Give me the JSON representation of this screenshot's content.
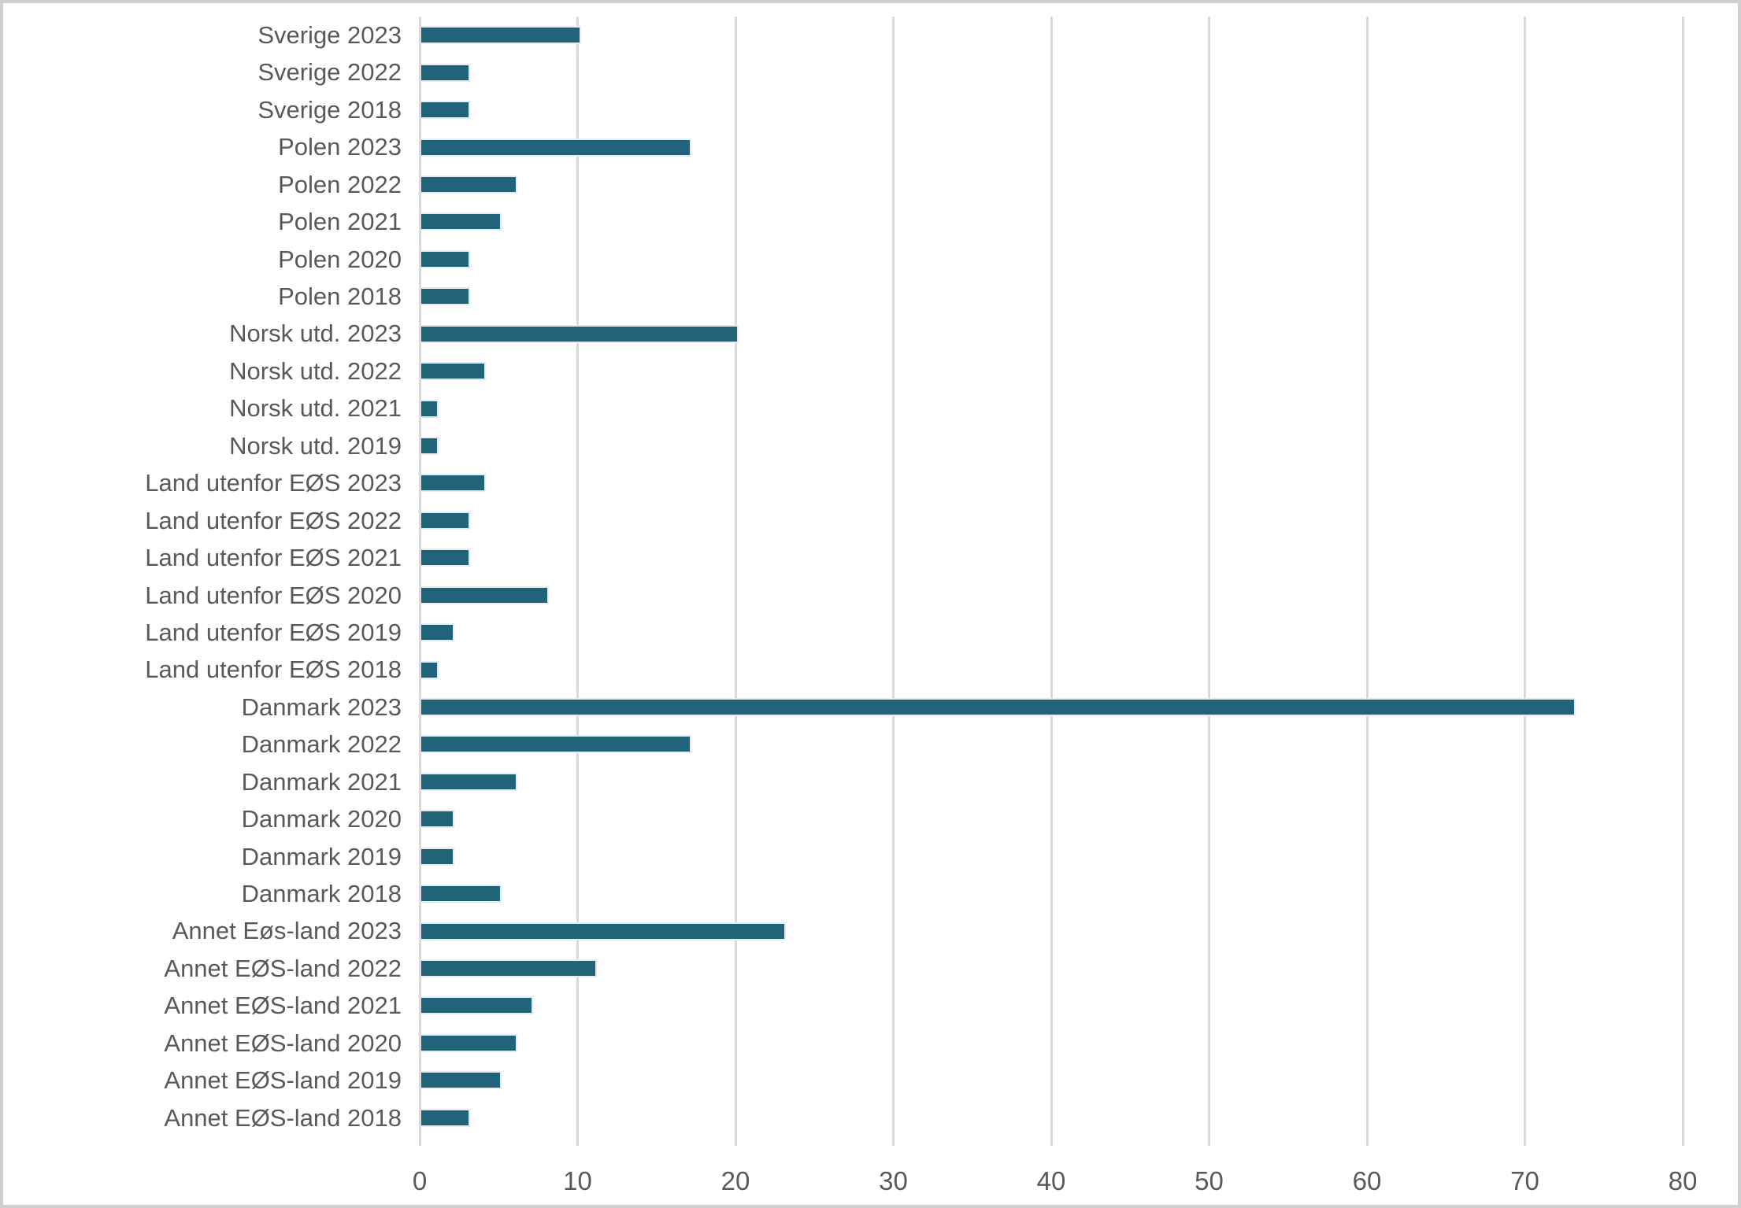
{
  "chart_data": {
    "type": "bar",
    "orientation": "horizontal",
    "title": "",
    "xlabel": "",
    "ylabel": "",
    "xlim": [
      0,
      80
    ],
    "x_ticks": [
      0,
      10,
      20,
      30,
      40,
      50,
      60,
      70,
      80
    ],
    "grid": "vertical-gridlines-on",
    "legend": "none",
    "categories": [
      "Sverige 2023",
      "Sverige 2022",
      "Sverige 2018",
      "Polen 2023",
      "Polen 2022",
      "Polen 2021",
      "Polen 2020",
      "Polen 2018",
      "Norsk utd. 2023",
      "Norsk utd. 2022",
      "Norsk utd. 2021",
      "Norsk utd. 2019",
      "Land utenfor EØS 2023",
      "Land utenfor EØS 2022",
      "Land utenfor EØS 2021",
      "Land utenfor EØS 2020",
      "Land utenfor EØS 2019",
      "Land utenfor EØS 2018",
      "Danmark 2023",
      "Danmark 2022",
      "Danmark 2021",
      "Danmark 2020",
      "Danmark 2019",
      "Danmark 2018",
      "Annet Eøs-land 2023",
      "Annet EØS-land 2022",
      "Annet EØS-land 2021",
      "Annet EØS-land 2020",
      "Annet EØS-land 2019",
      "Annet EØS-land 2018"
    ],
    "values": [
      10,
      3,
      3,
      17,
      6,
      5,
      3,
      3,
      20,
      4,
      1,
      1,
      4,
      3,
      3,
      8,
      2,
      1,
      73,
      17,
      6,
      2,
      2,
      5,
      23,
      11,
      7,
      6,
      5,
      3
    ],
    "colors": {
      "bar_fill": "#21647A",
      "bar_border": "#E2ECF2",
      "gridline": "#D9D9D9",
      "tick_mark": "#D9D9D9",
      "axis_label_text": "#595959",
      "frame_border": "#D0CECE",
      "background": "#FFFFFF"
    }
  }
}
